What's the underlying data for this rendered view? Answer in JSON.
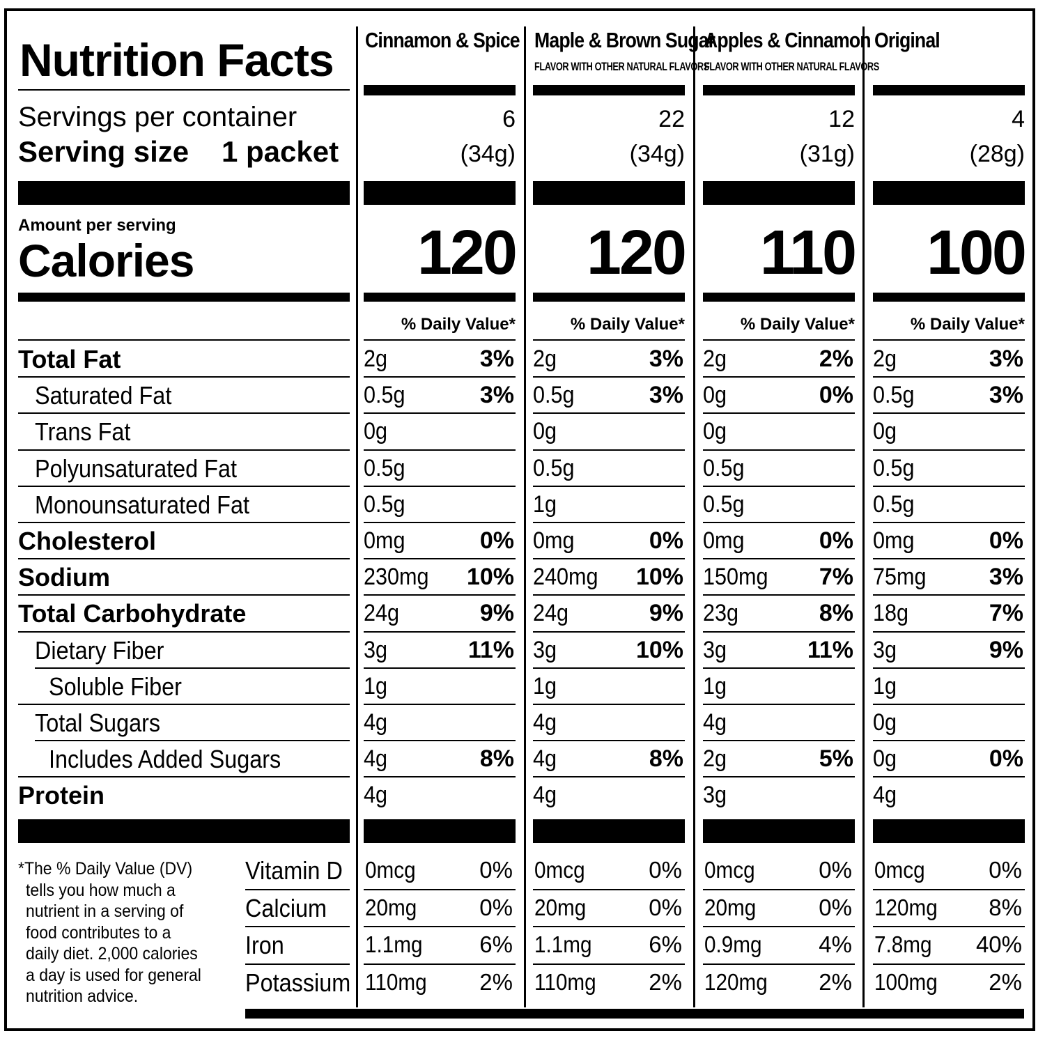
{
  "title": "Nutrition Facts",
  "servings_label": "Servings per container",
  "serving_size_label": "Serving size",
  "serving_size_value": "1 packet",
  "amount_per_serving": "Amount per serving",
  "calories_label": "Calories",
  "daily_value_header": "% Daily Value*",
  "nutrients": [
    {
      "label": "Total Fat",
      "bold": true,
      "indent": 0
    },
    {
      "label": "Saturated Fat",
      "bold": false,
      "indent": 1
    },
    {
      "label": "Trans Fat",
      "bold": false,
      "indent": 1
    },
    {
      "label": "Polyunsaturated Fat",
      "bold": false,
      "indent": 1
    },
    {
      "label": "Monounsaturated Fat",
      "bold": false,
      "indent": 1
    },
    {
      "label": "Cholesterol",
      "bold": true,
      "indent": 0
    },
    {
      "label": "Sodium",
      "bold": true,
      "indent": 0
    },
    {
      "label": "Total Carbohydrate",
      "bold": true,
      "indent": 0
    },
    {
      "label": "Dietary Fiber",
      "bold": false,
      "indent": 1
    },
    {
      "label": "Soluble Fiber",
      "bold": false,
      "indent": 2
    },
    {
      "label": "Total Sugars",
      "bold": false,
      "indent": 1
    },
    {
      "label": "Includes Added Sugars",
      "bold": false,
      "indent": 2
    },
    {
      "label": "Protein",
      "bold": true,
      "indent": 0
    }
  ],
  "vitamins": [
    "Vitamin D",
    "Calcium",
    "Iron",
    "Potassium"
  ],
  "footnote": [
    "*The % Daily Value (DV)",
    "tells you how much a",
    "nutrient in a serving of",
    "food contributes to a",
    "daily diet. 2,000 calories",
    "a day is used for general",
    "nutrition advice."
  ],
  "products": [
    {
      "name": "Cinnamon & Spice",
      "subtitle": "",
      "servings": "6",
      "serving_weight": "(34g)",
      "calories": "120",
      "values": [
        [
          "2g",
          "3%"
        ],
        [
          "0.5g",
          "3%"
        ],
        [
          "0g",
          ""
        ],
        [
          "0.5g",
          ""
        ],
        [
          "0.5g",
          ""
        ],
        [
          "0mg",
          "0%"
        ],
        [
          "230mg",
          "10%"
        ],
        [
          "24g",
          "9%"
        ],
        [
          "3g",
          "11%"
        ],
        [
          "1g",
          ""
        ],
        [
          "4g",
          ""
        ],
        [
          "4g",
          "8%"
        ],
        [
          "4g",
          ""
        ]
      ],
      "vitamins": [
        [
          "0mcg",
          "0%"
        ],
        [
          "20mg",
          "0%"
        ],
        [
          "1.1mg",
          "6%"
        ],
        [
          "110mg",
          "2%"
        ]
      ]
    },
    {
      "name": "Maple & Brown Sugar",
      "subtitle": "FLAVOR WITH OTHER NATURAL FLAVORS",
      "servings": "22",
      "serving_weight": "(34g)",
      "calories": "120",
      "values": [
        [
          "2g",
          "3%"
        ],
        [
          "0.5g",
          "3%"
        ],
        [
          "0g",
          ""
        ],
        [
          "0.5g",
          ""
        ],
        [
          "1g",
          ""
        ],
        [
          "0mg",
          "0%"
        ],
        [
          "240mg",
          "10%"
        ],
        [
          "24g",
          "9%"
        ],
        [
          "3g",
          "10%"
        ],
        [
          "1g",
          ""
        ],
        [
          "4g",
          ""
        ],
        [
          "4g",
          "8%"
        ],
        [
          "4g",
          ""
        ]
      ],
      "vitamins": [
        [
          "0mcg",
          "0%"
        ],
        [
          "20mg",
          "0%"
        ],
        [
          "1.1mg",
          "6%"
        ],
        [
          "110mg",
          "2%"
        ]
      ]
    },
    {
      "name": "Apples & Cinnamon",
      "subtitle": "FLAVOR WITH OTHER NATURAL FLAVORS",
      "servings": "12",
      "serving_weight": "(31g)",
      "calories": "110",
      "values": [
        [
          "2g",
          "2%"
        ],
        [
          "0g",
          "0%"
        ],
        [
          "0g",
          ""
        ],
        [
          "0.5g",
          ""
        ],
        [
          "0.5g",
          ""
        ],
        [
          "0mg",
          "0%"
        ],
        [
          "150mg",
          "7%"
        ],
        [
          "23g",
          "8%"
        ],
        [
          "3g",
          "11%"
        ],
        [
          "1g",
          ""
        ],
        [
          "4g",
          ""
        ],
        [
          "2g",
          "5%"
        ],
        [
          "3g",
          ""
        ]
      ],
      "vitamins": [
        [
          "0mcg",
          "0%"
        ],
        [
          "20mg",
          "0%"
        ],
        [
          "0.9mg",
          "4%"
        ],
        [
          "120mg",
          "2%"
        ]
      ]
    },
    {
      "name": "Original",
      "subtitle": "",
      "servings": "4",
      "serving_weight": "(28g)",
      "calories": "100",
      "values": [
        [
          "2g",
          "3%"
        ],
        [
          "0.5g",
          "3%"
        ],
        [
          "0g",
          ""
        ],
        [
          "0.5g",
          ""
        ],
        [
          "0.5g",
          ""
        ],
        [
          "0mg",
          "0%"
        ],
        [
          "75mg",
          "3%"
        ],
        [
          "18g",
          "7%"
        ],
        [
          "3g",
          "9%"
        ],
        [
          "1g",
          ""
        ],
        [
          "0g",
          ""
        ],
        [
          "0g",
          "0%"
        ],
        [
          "4g",
          ""
        ]
      ],
      "vitamins": [
        [
          "0mcg",
          "0%"
        ],
        [
          "120mg",
          "8%"
        ],
        [
          "7.8mg",
          "40%"
        ],
        [
          "100mg",
          "2%"
        ]
      ]
    }
  ]
}
